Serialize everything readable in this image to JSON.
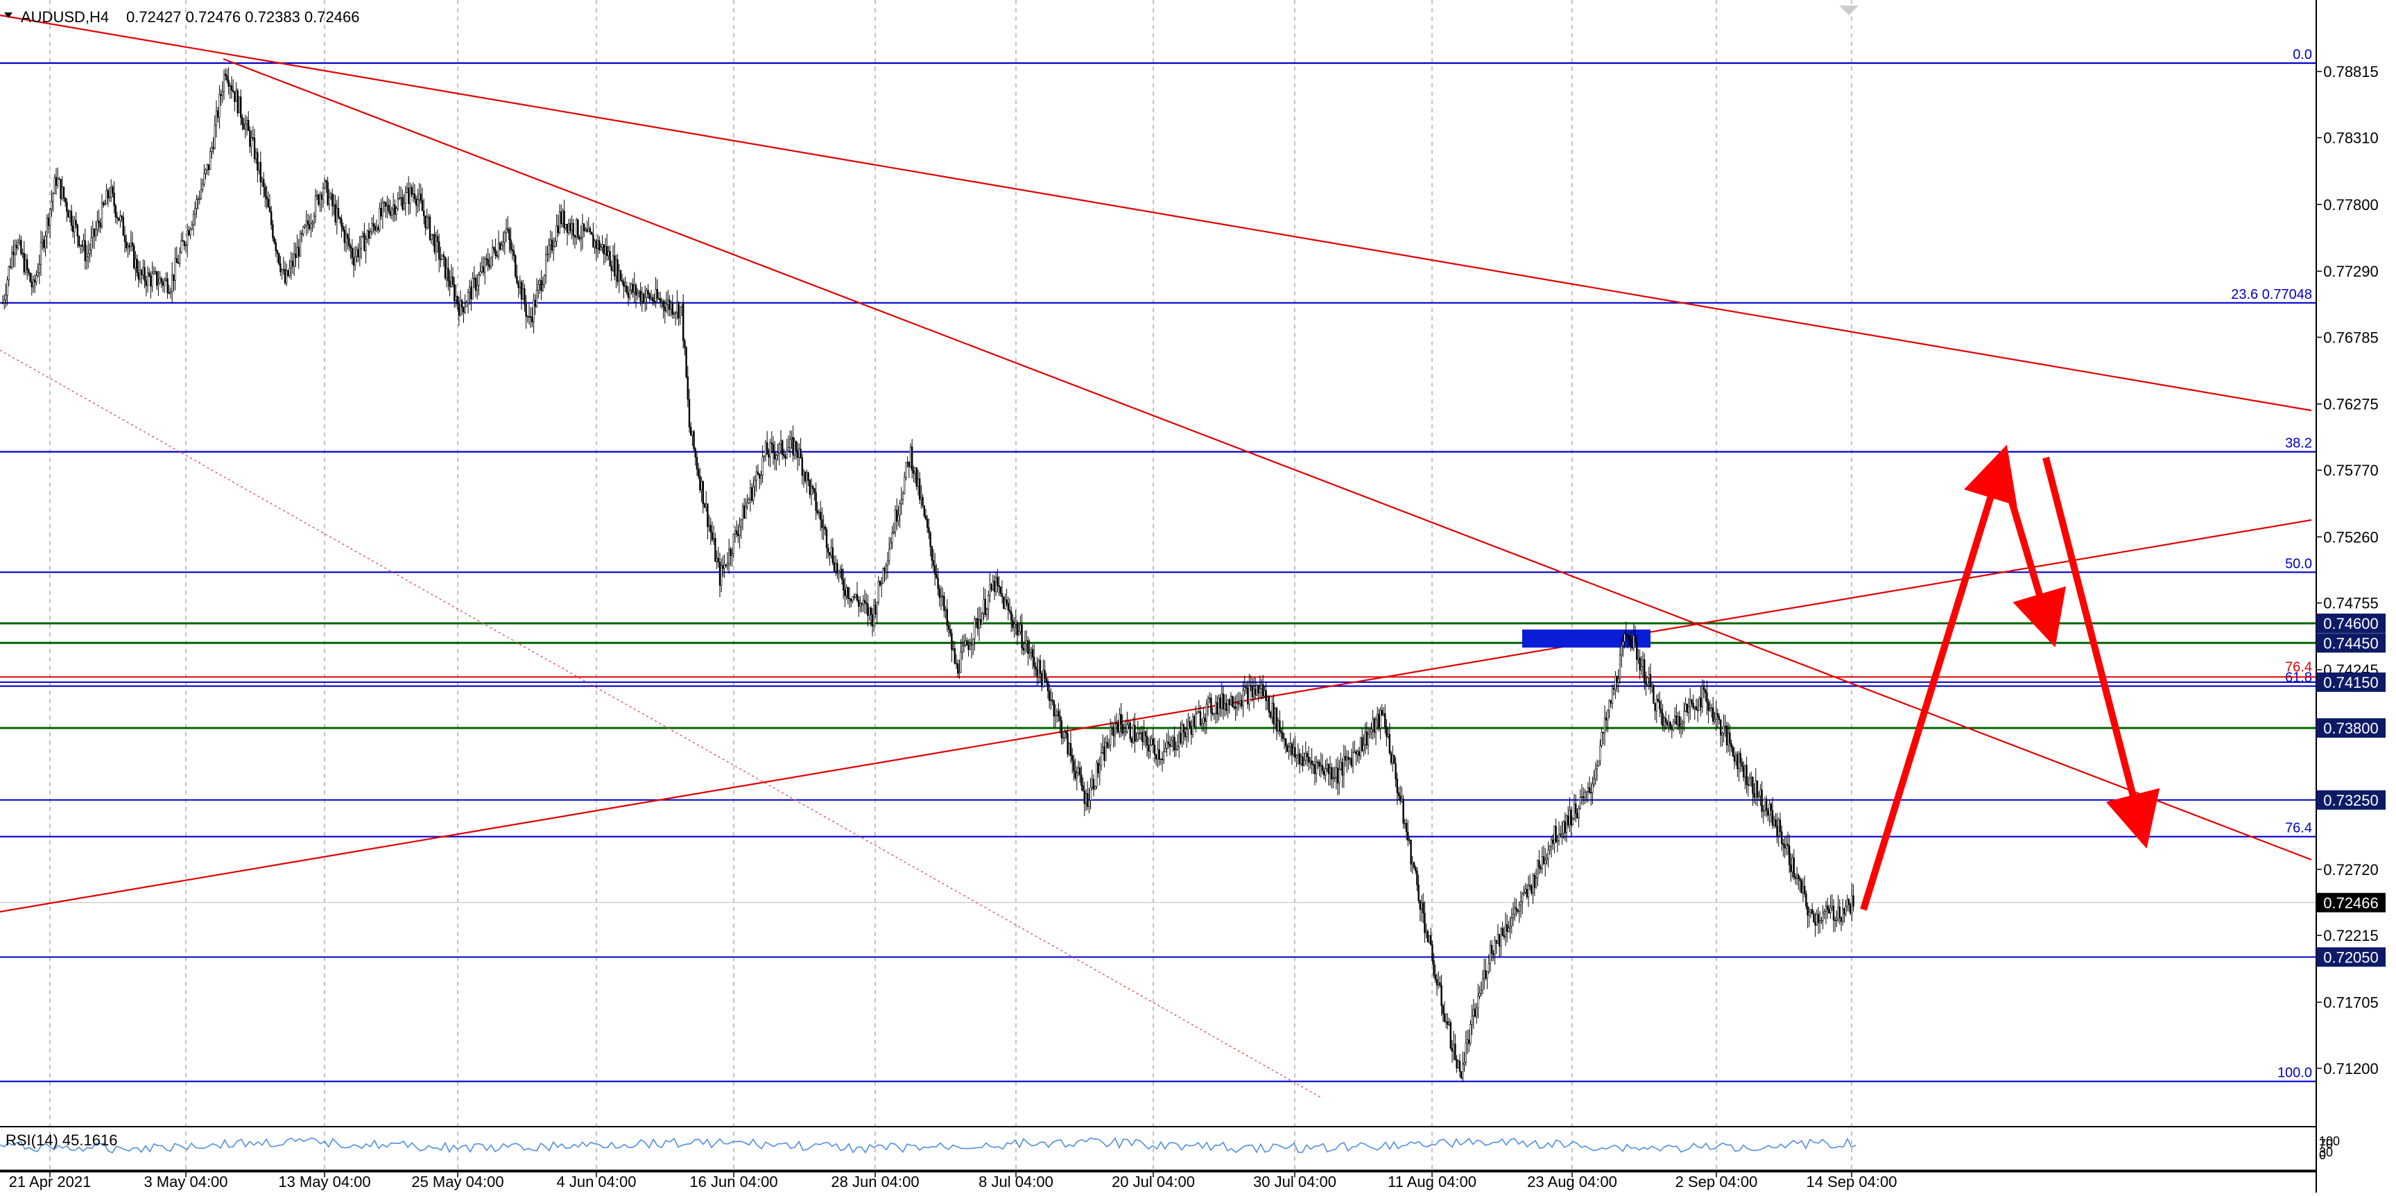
{
  "header": {
    "symbol_text": "AUDUSD,H4",
    "ohlc_text": "0.72427 0.72476 0.72383 0.72466"
  },
  "rsi": {
    "label": "RSI(14) 45.1616",
    "scale_top": "100",
    "scale_mid1": "70",
    "scale_mid2": "30",
    "scale_bottom": "0"
  },
  "colors": {
    "candle": "#000000",
    "blue_level": "#0000cc",
    "green_level": "#006400",
    "red_line": "#e00000",
    "arrow": "#ff0000",
    "grid": "#9a9a9a",
    "rsi_line": "#4f8fe0",
    "price_box_bg": "#0d1a66",
    "current_price_bg": "#000000"
  },
  "chart_data": {
    "type": "candlestick",
    "symbol": "AUDUSD",
    "timeframe": "H4",
    "ylim": [
      0.7095,
      0.7915
    ],
    "y_ticks": [
      "0.78815",
      "0.78310",
      "0.77800",
      "0.77290",
      "0.76785",
      "0.76275",
      "0.75770",
      "0.75260",
      "0.74755",
      "0.74245",
      "0.72720",
      "0.72215",
      "0.71705",
      "0.71200"
    ],
    "x_ticks": [
      "21 Apr 2021",
      "3 May 04:00",
      "13 May 04:00",
      "25 May 04:00",
      "4 Jun 04:00",
      "16 Jun 04:00",
      "28 Jun 04:00",
      "8 Jul 04:00",
      "20 Jul 04:00",
      "30 Jul 04:00",
      "11 Aug 04:00",
      "23 Aug 04:00",
      "2 Sep 04:00",
      "14 Sep 04:00"
    ],
    "current_price": "0.72466",
    "price_path": [
      [
        0,
        0.7705
      ],
      [
        8,
        0.7755
      ],
      [
        20,
        0.7715
      ],
      [
        35,
        0.78
      ],
      [
        55,
        0.774
      ],
      [
        70,
        0.779
      ],
      [
        90,
        0.7725
      ],
      [
        110,
        0.772
      ],
      [
        135,
        0.781
      ],
      [
        146,
        0.7885
      ],
      [
        165,
        0.782
      ],
      [
        185,
        0.772
      ],
      [
        210,
        0.7795
      ],
      [
        230,
        0.774
      ],
      [
        250,
        0.7775
      ],
      [
        270,
        0.779
      ],
      [
        300,
        0.77
      ],
      [
        330,
        0.776
      ],
      [
        345,
        0.769
      ],
      [
        365,
        0.777
      ],
      [
        395,
        0.7745
      ],
      [
        410,
        0.7715
      ],
      [
        445,
        0.77
      ],
      [
        450,
        0.761
      ],
      [
        470,
        0.7495
      ],
      [
        500,
        0.759
      ],
      [
        520,
        0.7595
      ],
      [
        550,
        0.749
      ],
      [
        570,
        0.7465
      ],
      [
        595,
        0.759
      ],
      [
        625,
        0.7425
      ],
      [
        650,
        0.749
      ],
      [
        685,
        0.741
      ],
      [
        710,
        0.7325
      ],
      [
        730,
        0.7385
      ],
      [
        760,
        0.736
      ],
      [
        790,
        0.7395
      ],
      [
        825,
        0.741
      ],
      [
        845,
        0.736
      ],
      [
        875,
        0.7345
      ],
      [
        905,
        0.739
      ],
      [
        920,
        0.73
      ],
      [
        940,
        0.7185
      ],
      [
        955,
        0.7115
      ],
      [
        975,
        0.721
      ],
      [
        1000,
        0.7255
      ],
      [
        1015,
        0.7295
      ],
      [
        1040,
        0.733
      ],
      [
        1065,
        0.7455
      ],
      [
        1090,
        0.738
      ],
      [
        1115,
        0.7405
      ],
      [
        1140,
        0.735
      ],
      [
        1165,
        0.73
      ],
      [
        1185,
        0.7235
      ],
      [
        1205,
        0.724
      ],
      [
        1213,
        0.72466
      ]
    ],
    "fibonacci": [
      {
        "label": "0.0",
        "price": 0.7888
      },
      {
        "label": "23.6 0.77048",
        "price": 0.77048
      },
      {
        "label": "38.2",
        "price": 0.7591
      },
      {
        "label": "50.0",
        "price": 0.7499
      },
      {
        "label": "61.8",
        "price": 0.7412
      },
      {
        "label": "76.4",
        "price": 0.7297
      },
      {
        "label": "100.0",
        "price": 0.711
      }
    ],
    "horizontal_levels": [
      {
        "price": "0.74600",
        "value": 0.746,
        "color": "green"
      },
      {
        "price": "0.74450",
        "value": 0.7445,
        "color": "green"
      },
      {
        "price": "0.73800",
        "value": 0.738,
        "color": "green"
      },
      {
        "price": "0.74150",
        "value": 0.7415,
        "color": "blue"
      },
      {
        "price": "0.73250",
        "value": 0.7325,
        "color": "blue"
      },
      {
        "price": "0.72050",
        "value": 0.7205,
        "color": "blue"
      }
    ],
    "red_level": {
      "label": "76.4",
      "value": 0.7419
    },
    "rsi_value": 45.1616
  }
}
